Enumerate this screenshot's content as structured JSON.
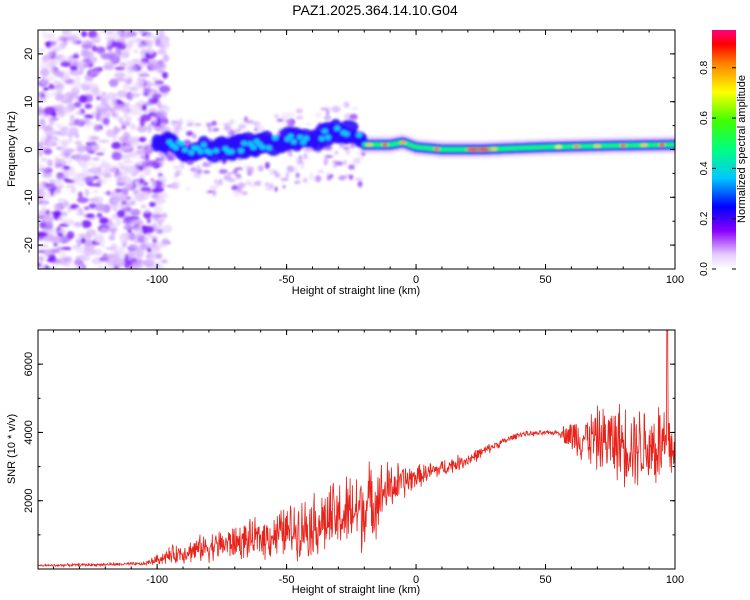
{
  "title": "PAZ1.2025.364.14.10.G04",
  "chart_data": [
    {
      "type": "heatmap",
      "xlabel": "Height of straight line (km)",
      "ylabel": "Frequency (Hz)",
      "xlim": [
        -146,
        100
      ],
      "ylim": [
        -25,
        25
      ],
      "xticks": [
        -100,
        -50,
        0,
        50,
        100
      ],
      "yticks": [
        -20,
        -10,
        0,
        10,
        20
      ],
      "colorbar": {
        "label": "Normalized spectral amplitude",
        "range": [
          0,
          0.95
        ],
        "ticks": [
          0.0,
          0.2,
          0.4,
          0.6,
          0.8
        ]
      },
      "ridge": [
        {
          "x": -100,
          "y": 1.0
        },
        {
          "x": -90,
          "y": 0.5
        },
        {
          "x": -80,
          "y": 0.0
        },
        {
          "x": -70,
          "y": 0.5
        },
        {
          "x": -60,
          "y": 1.0
        },
        {
          "x": -50,
          "y": 2.0
        },
        {
          "x": -40,
          "y": 2.5
        },
        {
          "x": -30,
          "y": 3.5
        },
        {
          "x": -25,
          "y": 4.0
        },
        {
          "x": -20,
          "y": 1.0
        },
        {
          "x": -10,
          "y": 1.0
        },
        {
          "x": -5,
          "y": 1.5
        },
        {
          "x": 0,
          "y": 0.5
        },
        {
          "x": 10,
          "y": 0.0
        },
        {
          "x": 25,
          "y": 0.0
        },
        {
          "x": 50,
          "y": 0.5
        },
        {
          "x": 75,
          "y": 0.8
        },
        {
          "x": 100,
          "y": 1.0
        }
      ]
    },
    {
      "type": "line",
      "xlabel": "Height of straight line (km)",
      "ylabel": "SNR (10 * v/v)",
      "xlim": [
        -146,
        100
      ],
      "ylim": [
        0,
        7000
      ],
      "xticks": [
        -100,
        -50,
        0,
        50,
        100
      ],
      "yticks": [
        2000,
        4000,
        6000
      ],
      "series": [
        {
          "name": "SNR",
          "color": "#e8221a",
          "envelope_x": [
            -146,
            -105,
            -95,
            -80,
            -60,
            -50,
            -30,
            -20,
            -10,
            0,
            10,
            20,
            30,
            40,
            55,
            60,
            70,
            80,
            90,
            97,
            100
          ],
          "envelope_mean": [
            100,
            150,
            400,
            650,
            900,
            1100,
            1500,
            1800,
            2400,
            2700,
            2950,
            3200,
            3600,
            3950,
            4000,
            3900,
            3800,
            3700,
            3600,
            3600,
            3500
          ],
          "envelope_amp": [
            40,
            60,
            300,
            500,
            700,
            900,
            1300,
            1500,
            900,
            400,
            300,
            250,
            150,
            100,
            80,
            600,
            1100,
            1400,
            1500,
            1800,
            900
          ],
          "peak": {
            "x": 97,
            "y": 7000
          }
        }
      ]
    }
  ]
}
